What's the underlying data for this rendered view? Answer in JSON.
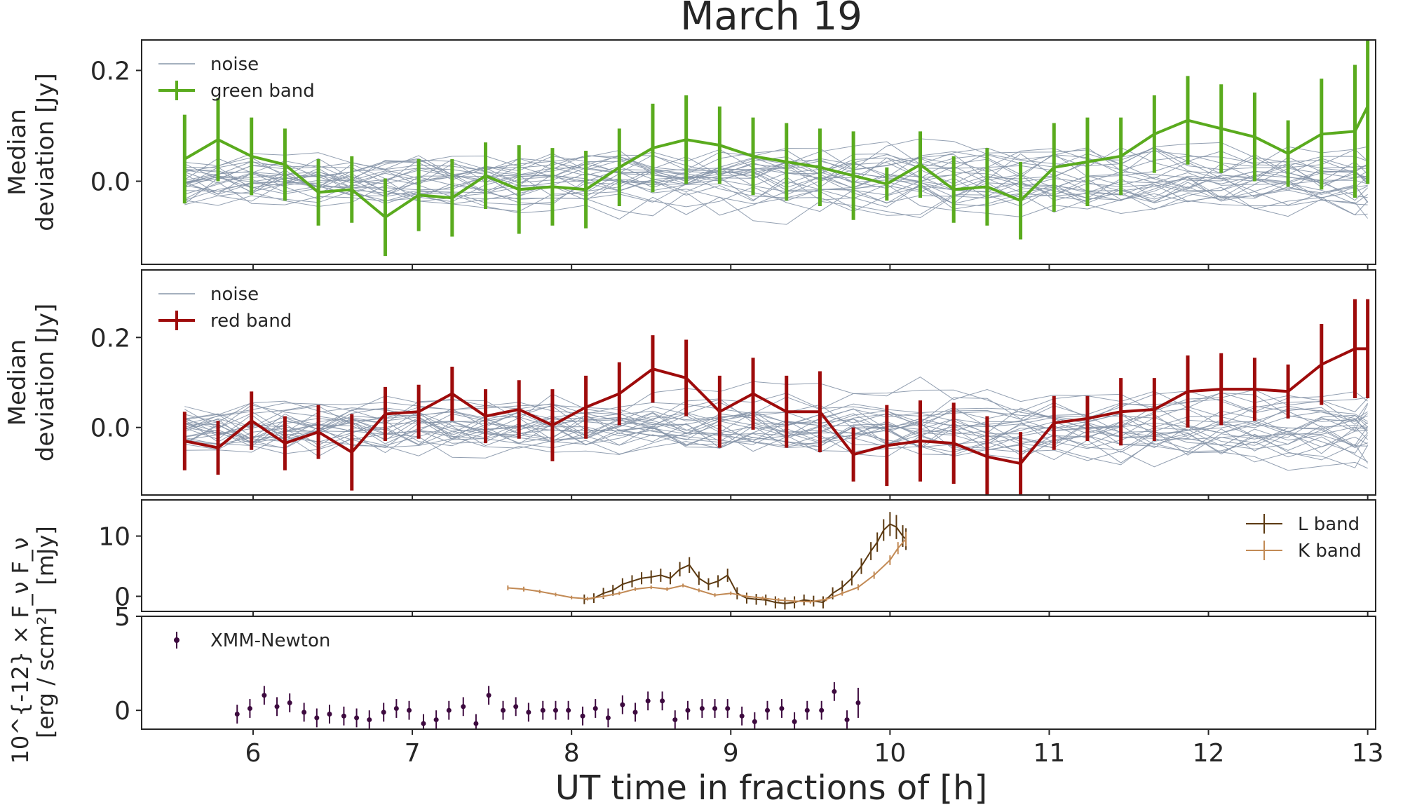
{
  "figure": {
    "title": "March 19",
    "xlabel": "UT time in fractions of [h]"
  },
  "chart_data": [
    {
      "type": "line",
      "panel": "green",
      "ylabel_lines": [
        "Median",
        "deviation [Jy]"
      ],
      "xlim": [
        5.3,
        13.05
      ],
      "ylim": [
        -0.15,
        0.255
      ],
      "yticks": [
        0.0,
        0.2
      ],
      "ytick_labels": [
        "0.0",
        "0.2"
      ],
      "legend": [
        "noise",
        "green band"
      ],
      "legend_position": "top-left",
      "noise_curves": 28,
      "series": [
        {
          "name": "green band",
          "color": "#5aab1e",
          "x": [
            5.57,
            5.78,
            5.99,
            6.2,
            6.41,
            6.62,
            6.83,
            7.04,
            7.25,
            7.46,
            7.67,
            7.88,
            8.09,
            8.3,
            8.51,
            8.72,
            8.93,
            9.14,
            9.35,
            9.56,
            9.77,
            9.98,
            10.19,
            10.4,
            10.61,
            10.82,
            11.03,
            11.24,
            11.45,
            11.66,
            11.87,
            12.08,
            12.29,
            12.5,
            12.71,
            12.92,
            13.0
          ],
          "y": [
            0.04,
            0.075,
            0.045,
            0.03,
            -0.02,
            -0.015,
            -0.065,
            -0.025,
            -0.03,
            0.01,
            -0.015,
            -0.01,
            -0.015,
            0.025,
            0.06,
            0.075,
            0.065,
            0.045,
            0.035,
            0.025,
            0.01,
            -0.005,
            0.03,
            -0.015,
            -0.01,
            -0.035,
            0.025,
            0.035,
            0.045,
            0.085,
            0.11,
            0.095,
            0.08,
            0.05,
            0.085,
            0.09,
            0.135
          ],
          "err": [
            0.08,
            0.075,
            0.07,
            0.065,
            0.06,
            0.06,
            0.07,
            0.065,
            0.07,
            0.06,
            0.08,
            0.07,
            0.07,
            0.07,
            0.08,
            0.08,
            0.07,
            0.07,
            0.07,
            0.07,
            0.08,
            0.03,
            0.06,
            0.06,
            0.07,
            0.07,
            0.08,
            0.08,
            0.07,
            0.07,
            0.08,
            0.08,
            0.08,
            0.06,
            0.1,
            0.12,
            0.14
          ]
        }
      ]
    },
    {
      "type": "line",
      "panel": "red",
      "ylabel_lines": [
        "Median",
        "deviation [Jy]"
      ],
      "xlim": [
        5.3,
        13.05
      ],
      "ylim": [
        -0.15,
        0.35
      ],
      "yticks": [
        0.0,
        0.2
      ],
      "ytick_labels": [
        "0.0",
        "0.2"
      ],
      "legend": [
        "noise",
        "red band"
      ],
      "legend_position": "top-left",
      "noise_curves": 28,
      "series": [
        {
          "name": "red band",
          "color": "#9e0b0b",
          "x": [
            5.57,
            5.78,
            5.99,
            6.2,
            6.41,
            6.62,
            6.83,
            7.04,
            7.25,
            7.46,
            7.67,
            7.88,
            8.09,
            8.3,
            8.51,
            8.72,
            8.93,
            9.14,
            9.35,
            9.56,
            9.77,
            9.98,
            10.19,
            10.4,
            10.61,
            10.82,
            11.03,
            11.24,
            11.45,
            11.66,
            11.87,
            12.08,
            12.29,
            12.5,
            12.71,
            12.92,
            13.0
          ],
          "y": [
            -0.03,
            -0.045,
            0.015,
            -0.035,
            -0.01,
            -0.055,
            0.03,
            0.035,
            0.075,
            0.025,
            0.04,
            0.005,
            0.045,
            0.075,
            0.13,
            0.11,
            0.035,
            0.075,
            0.035,
            0.035,
            -0.06,
            -0.04,
            -0.03,
            -0.035,
            -0.065,
            -0.08,
            0.01,
            0.02,
            0.035,
            0.04,
            0.08,
            0.085,
            0.085,
            0.08,
            0.14,
            0.175,
            0.175
          ],
          "err": [
            0.065,
            0.06,
            0.065,
            0.06,
            0.06,
            0.085,
            0.06,
            0.06,
            0.06,
            0.06,
            0.065,
            0.08,
            0.07,
            0.07,
            0.075,
            0.085,
            0.08,
            0.08,
            0.08,
            0.09,
            0.06,
            0.09,
            0.09,
            0.09,
            0.09,
            0.07,
            0.06,
            0.05,
            0.075,
            0.07,
            0.08,
            0.08,
            0.07,
            0.06,
            0.09,
            0.11,
            0.11
          ]
        }
      ]
    },
    {
      "type": "line",
      "panel": "fnu",
      "ylabel_lines": [
        "F_ν",
        "[mJy]"
      ],
      "xlim": [
        5.3,
        13.05
      ],
      "ylim": [
        -2.5,
        16
      ],
      "yticks": [
        0,
        10
      ],
      "ytick_labels": [
        "0",
        "10"
      ],
      "legend": [
        "L band",
        "K band"
      ],
      "legend_position": "top-right",
      "series": [
        {
          "name": "L band",
          "color": "#5c3a12",
          "x": [
            8.08,
            8.14,
            8.2,
            8.26,
            8.32,
            8.38,
            8.44,
            8.5,
            8.56,
            8.62,
            8.68,
            8.74,
            8.8,
            8.86,
            8.92,
            8.98,
            9.04,
            9.1,
            9.16,
            9.22,
            9.28,
            9.34,
            9.4,
            9.46,
            9.52,
            9.58,
            9.64,
            9.7,
            9.76,
            9.82,
            9.88,
            9.92,
            9.96,
            10.0,
            10.04,
            10.08,
            10.1
          ],
          "y": [
            -0.5,
            -0.3,
            0.5,
            1.0,
            2.0,
            2.5,
            3.0,
            3.2,
            3.5,
            3.0,
            4.5,
            5.2,
            3.0,
            2.0,
            2.5,
            3.5,
            0.5,
            -0.3,
            -0.5,
            -0.6,
            -1.0,
            -1.2,
            -1.0,
            -0.6,
            -0.8,
            -1.0,
            0.5,
            1.5,
            3.0,
            5.0,
            7.5,
            9.0,
            11.0,
            12.0,
            11.5,
            10.0,
            9.5
          ],
          "err": [
            0.8,
            0.8,
            0.9,
            0.9,
            1.0,
            1.0,
            1.0,
            1.1,
            1.1,
            1.0,
            1.2,
            1.3,
            1.1,
            1.0,
            1.0,
            1.1,
            1.0,
            0.9,
            0.9,
            0.9,
            1.0,
            1.0,
            1.0,
            0.9,
            0.9,
            1.0,
            1.0,
            1.1,
            1.2,
            1.3,
            1.5,
            1.6,
            1.8,
            2.0,
            2.0,
            1.8,
            1.8
          ]
        },
        {
          "name": "K band",
          "color": "#c28a55",
          "x": [
            7.6,
            7.7,
            7.8,
            7.9,
            8.0,
            8.1,
            8.2,
            8.3,
            8.4,
            8.5,
            8.6,
            8.7,
            8.8,
            8.9,
            9.0,
            9.1,
            9.2,
            9.3,
            9.4,
            9.5,
            9.6,
            9.7,
            9.8,
            9.9,
            10.0,
            10.05,
            10.1
          ],
          "y": [
            1.4,
            1.2,
            0.8,
            0.3,
            -0.2,
            -0.4,
            0.0,
            0.5,
            1.2,
            1.5,
            1.2,
            1.8,
            1.0,
            0.2,
            0.5,
            0.0,
            -0.3,
            -0.6,
            -0.8,
            -0.9,
            -0.5,
            0.5,
            1.5,
            3.5,
            6.0,
            8.0,
            9.5
          ],
          "err": [
            0.4,
            0.4,
            0.3,
            0.3,
            0.3,
            0.3,
            0.3,
            0.3,
            0.3,
            0.3,
            0.3,
            0.3,
            0.3,
            0.3,
            0.3,
            0.3,
            0.3,
            0.3,
            0.3,
            0.3,
            0.3,
            0.4,
            0.5,
            0.6,
            0.8,
            1.0,
            1.2
          ]
        }
      ]
    },
    {
      "type": "scatter",
      "panel": "xmm",
      "ylabel_lines": [
        "10^{-12} × F_ν",
        "[erg / scm²]"
      ],
      "xlim": [
        5.3,
        13.05
      ],
      "ylim": [
        -1.0,
        5.0
      ],
      "yticks": [
        0,
        5
      ],
      "ytick_labels": [
        "0",
        "5"
      ],
      "legend": [
        "XMM-Newton"
      ],
      "legend_position": "top-left",
      "series": [
        {
          "name": "XMM-Newton",
          "color": "#3d0a3f",
          "x": [
            5.9,
            5.98,
            6.07,
            6.15,
            6.23,
            6.32,
            6.4,
            6.48,
            6.57,
            6.65,
            6.73,
            6.82,
            6.9,
            6.98,
            7.07,
            7.15,
            7.23,
            7.32,
            7.4,
            7.48,
            7.57,
            7.65,
            7.73,
            7.82,
            7.9,
            7.98,
            8.07,
            8.15,
            8.23,
            8.32,
            8.4,
            8.48,
            8.57,
            8.65,
            8.73,
            8.82,
            8.9,
            8.98,
            9.07,
            9.15,
            9.23,
            9.32,
            9.4,
            9.48,
            9.57,
            9.65,
            9.73,
            9.8
          ],
          "y": [
            -0.2,
            0.1,
            0.8,
            0.2,
            0.4,
            -0.1,
            -0.4,
            -0.2,
            -0.3,
            -0.4,
            -0.5,
            -0.1,
            0.1,
            0.0,
            -0.7,
            -0.5,
            0.0,
            0.2,
            -0.7,
            0.8,
            0.0,
            0.2,
            -0.1,
            0.0,
            0.0,
            0.0,
            -0.3,
            0.1,
            -0.4,
            0.3,
            -0.1,
            0.5,
            0.5,
            -0.5,
            0.0,
            0.1,
            0.1,
            0.1,
            -0.3,
            -0.6,
            0.0,
            0.1,
            -0.6,
            0.0,
            0.0,
            1.0,
            -0.5,
            0.4
          ],
          "err": [
            0.5,
            0.5,
            0.5,
            0.5,
            0.5,
            0.5,
            0.5,
            0.5,
            0.5,
            0.5,
            0.5,
            0.5,
            0.5,
            0.5,
            0.5,
            0.5,
            0.5,
            0.5,
            0.5,
            0.5,
            0.5,
            0.5,
            0.5,
            0.5,
            0.5,
            0.5,
            0.5,
            0.5,
            0.5,
            0.5,
            0.5,
            0.5,
            0.5,
            0.5,
            0.5,
            0.5,
            0.5,
            0.5,
            0.5,
            0.5,
            0.5,
            0.5,
            0.5,
            0.5,
            0.5,
            0.5,
            0.5,
            0.8
          ]
        }
      ]
    }
  ],
  "xaxis": {
    "ticks": [
      6,
      7,
      8,
      9,
      10,
      11,
      12,
      13
    ],
    "tick_labels": [
      "6",
      "7",
      "8",
      "9",
      "10",
      "11",
      "12",
      "13"
    ]
  },
  "colors": {
    "noise": "#8695a8",
    "axis": "#262626"
  }
}
